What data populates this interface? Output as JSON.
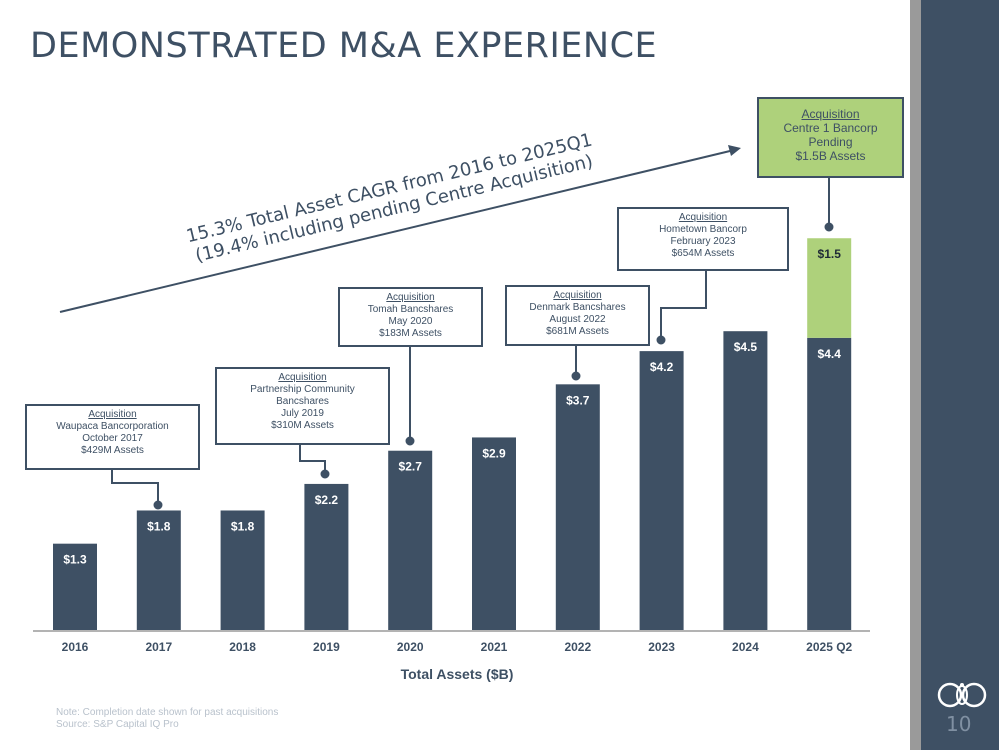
{
  "page": {
    "title": "DEMONSTRATED M&A EXPERIENCE",
    "cagr_line1": "15.3% Total Asset CAGR from 2016 to 2025Q1",
    "cagr_line2": "(19.4% including pending Centre Acquisition)",
    "note": "Note: Completion date shown for past acquisitions",
    "source": "Source: S&P Capital IQ Pro",
    "page_number": "10",
    "logo_icon": "company-logo-icon"
  },
  "chart_data": {
    "type": "bar",
    "stacked": true,
    "xlabel": "Total Assets ($B)",
    "ylabel": "",
    "ylim": [
      0,
      8
    ],
    "grid": false,
    "legend": "none",
    "categories": [
      "2016",
      "2017",
      "2018",
      "2019",
      "2020",
      "2021",
      "2022",
      "2023",
      "2024",
      "2025 Q2"
    ],
    "series": [
      {
        "name": "Total Assets",
        "color": "#3e5064",
        "values": [
          1.3,
          1.8,
          1.8,
          2.2,
          2.7,
          2.9,
          3.7,
          4.2,
          4.5,
          4.4
        ],
        "labels": [
          "$1.3",
          "$1.8",
          "$1.8",
          "$2.2",
          "$2.7",
          "$2.9",
          "$3.7",
          "$4.2",
          "$4.5",
          "$4.4"
        ]
      },
      {
        "name": "Pending Acquisition",
        "color": "#aed17b",
        "values": [
          0,
          0,
          0,
          0,
          0,
          0,
          0,
          0,
          0,
          1.5
        ],
        "labels": [
          "",
          "",
          "",
          "",
          "",
          "",
          "",
          "",
          "",
          "$1.5"
        ]
      }
    ]
  },
  "callouts": [
    {
      "heading": "Acquisition",
      "line1": "Waupaca Bancorporation",
      "line2": "October 2017",
      "line3": "$429M Assets"
    },
    {
      "heading": "Acquisition",
      "line1": "Partnership Community",
      "line2": "Bancshares",
      "line3": "July 2019",
      "line4": "$310M Assets"
    },
    {
      "heading": "Acquisition",
      "line1": "Tomah Bancshares",
      "line2": "May 2020",
      "line3": "$183M Assets"
    },
    {
      "heading": "Acquisition",
      "line1": "Denmark Bancshares",
      "line2": "August 2022",
      "line3": "$681M Assets"
    },
    {
      "heading": "Acquisition",
      "line1": "Hometown Bancorp",
      "line2": "February 2023",
      "line3": "$654M Assets"
    },
    {
      "heading": "Acquisition",
      "line1": "Centre 1 Bancorp",
      "line2": "Pending",
      "line3": "$1.5B Assets"
    }
  ]
}
